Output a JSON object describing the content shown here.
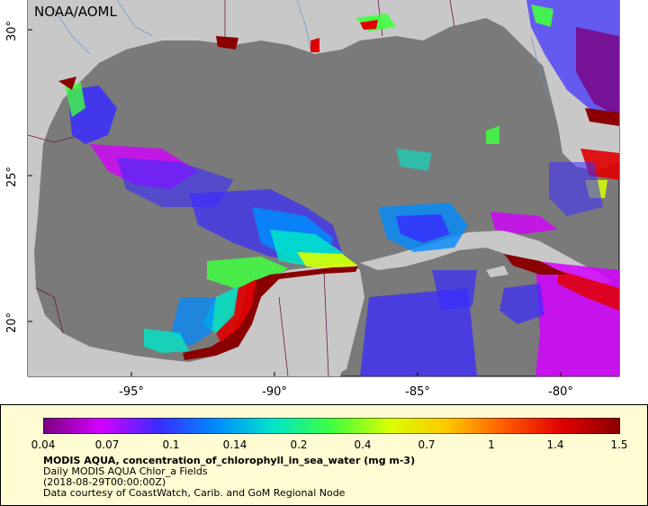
{
  "map": {
    "agency": "NOAA/AOML",
    "lat_labels": [
      "30°",
      "25°",
      "20°"
    ],
    "lon_labels": [
      "-95°",
      "-90°",
      "-85°",
      "-80°"
    ]
  },
  "legend": {
    "ticks": [
      "0.04",
      "0.07",
      "0.1",
      "0.14",
      "0.2",
      "0.4",
      "0.7",
      "1",
      "1.4",
      "1.5"
    ],
    "colors": [
      "#7a007f",
      "#d400ff",
      "#3a2bff",
      "#008cff",
      "#00e6c8",
      "#40ff40",
      "#d8ff00",
      "#ffc800",
      "#ff5a00",
      "#e00000",
      "#8a0000"
    ]
  },
  "caption": {
    "title": "MODIS AQUA, concentration_of_chlorophyll_in_sea_water (mg m-3)",
    "line2": "Daily MODIS AQUA Chlor_a Fields",
    "line3": "(2018-08-29T00:00:00Z)",
    "line4": "Data courtesy of CoastWatch, Carib. and GoM Regional Node"
  }
}
